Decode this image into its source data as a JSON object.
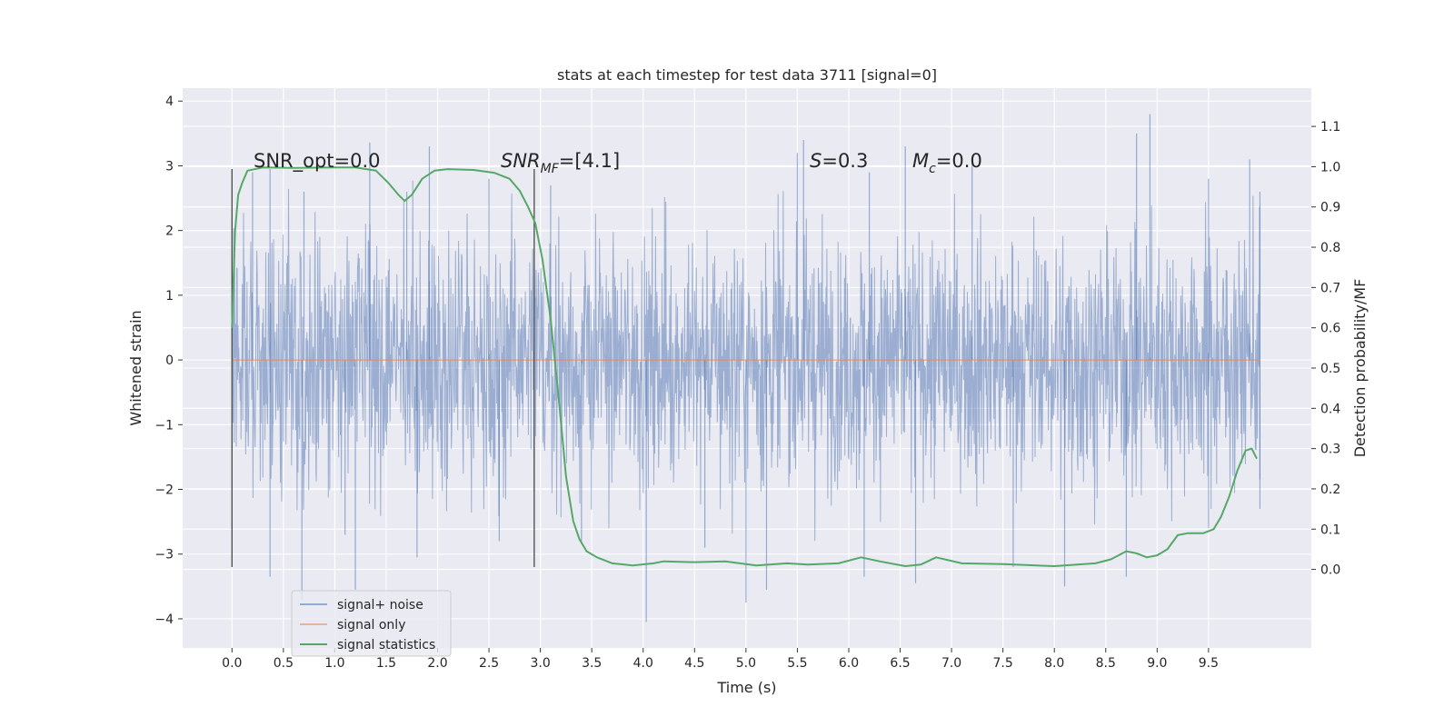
{
  "chart_data": {
    "type": "line",
    "title": "stats at each timestep for test data 3711 [signal=0]",
    "xlabel": "Time (s)",
    "ylabel": "Whitened strain",
    "ylabel_right": "Detection probability/MF",
    "xlim": [
      -0.48,
      10.5
    ],
    "ylim": [
      -4.45,
      4.2
    ],
    "ylim_right": [
      -0.195,
      1.195
    ],
    "x_ticks": [
      0.0,
      0.5,
      1.0,
      1.5,
      2.0,
      2.5,
      3.0,
      3.5,
      4.0,
      4.5,
      5.0,
      5.5,
      6.0,
      6.5,
      7.0,
      7.5,
      8.0,
      8.5,
      9.0,
      9.5
    ],
    "x_tick_labels": [
      "0.0",
      "0.5",
      "1.0",
      "1.5",
      "2.0",
      "2.5",
      "3.0",
      "3.5",
      "4.0",
      "4.5",
      "5.0",
      "5.5",
      "6.0",
      "6.5",
      "7.0",
      "7.5",
      "8.0",
      "8.5",
      "9.0",
      "9.5"
    ],
    "y_ticks": [
      -4,
      -3,
      -2,
      -1,
      0,
      1,
      2,
      3,
      4
    ],
    "y_tick_labels": [
      "−4",
      "−3",
      "−2",
      "−1",
      "0",
      "1",
      "2",
      "3",
      "4"
    ],
    "y_ticks_right": [
      0.0,
      0.1,
      0.2,
      0.3,
      0.4,
      0.5,
      0.6,
      0.7,
      0.8,
      0.9,
      1.0,
      1.1
    ],
    "y_tick_labels_right": [
      "0.0",
      "0.1",
      "0.2",
      "0.3",
      "0.4",
      "0.5",
      "0.6",
      "0.7",
      "0.8",
      "0.9",
      "1.0",
      "1.1"
    ],
    "grid": true,
    "legend_position": "lower-left",
    "annotations": {
      "snr_opt": "SNR_opt=0.0",
      "snr_mf_main": "SNR",
      "snr_mf_sub": "MF",
      "snr_mf_value": "=[4.1]",
      "s_main": "S",
      "s_value": "=0.3",
      "mc_main": "M",
      "mc_sub": "c",
      "mc_value": "=0.0"
    },
    "vlines": [
      0.0,
      2.94
    ],
    "vline_range": [
      -3.2,
      2.95
    ],
    "series": [
      {
        "name": "signal+ noise",
        "color": "#4c72b0",
        "axis": "left",
        "x_range": [
          0.0,
          10.0
        ],
        "envelope_sigma": 1.0,
        "peak_max": [
          [
            0.0,
            2.2
          ],
          [
            0.2,
            2.9
          ],
          [
            0.37,
            2.95
          ],
          [
            0.7,
            2.6
          ],
          [
            1.34,
            3.36
          ],
          [
            1.7,
            2.6
          ],
          [
            1.92,
            3.3
          ],
          [
            2.5,
            2.8
          ],
          [
            3.1,
            2.7
          ],
          [
            5.5,
            3.2
          ],
          [
            5.56,
            3.4
          ],
          [
            6.2,
            2.9
          ],
          [
            6.55,
            3.3
          ],
          [
            7.2,
            3.1
          ],
          [
            8.8,
            3.5
          ],
          [
            8.93,
            3.8
          ],
          [
            9.5,
            2.8
          ],
          [
            9.9,
            3.1
          ],
          [
            10.0,
            2.6
          ]
        ],
        "peak_min": [
          [
            0.0,
            -2.6
          ],
          [
            0.37,
            -3.35
          ],
          [
            0.68,
            -3.7
          ],
          [
            1.1,
            -2.7
          ],
          [
            1.2,
            -3.55
          ],
          [
            1.8,
            -3.05
          ],
          [
            2.6,
            -2.8
          ],
          [
            3.4,
            -2.8
          ],
          [
            4.03,
            -4.05
          ],
          [
            4.6,
            -2.9
          ],
          [
            5.0,
            -3.75
          ],
          [
            5.2,
            -3.55
          ],
          [
            6.15,
            -3.35
          ],
          [
            6.65,
            -3.45
          ],
          [
            7.6,
            -3.2
          ],
          [
            8.1,
            -3.5
          ],
          [
            8.7,
            -3.35
          ],
          [
            9.5,
            -2.6
          ],
          [
            10.0,
            -2.3
          ]
        ]
      },
      {
        "name": "signal only",
        "color": "#dd8452",
        "axis": "left",
        "x": [
          0.0,
          10.0
        ],
        "y": [
          0.0,
          0.0
        ]
      },
      {
        "name": "signal statistics",
        "color": "#55a868",
        "axis": "right",
        "x": [
          0.0,
          0.03,
          0.06,
          0.1,
          0.15,
          0.3,
          0.6,
          1.0,
          1.2,
          1.4,
          1.52,
          1.62,
          1.68,
          1.75,
          1.85,
          1.97,
          2.1,
          2.35,
          2.55,
          2.7,
          2.8,
          2.88,
          2.95,
          3.02,
          3.1,
          3.18,
          3.25,
          3.32,
          3.38,
          3.45,
          3.55,
          3.7,
          3.9,
          4.1,
          4.2,
          4.5,
          4.8,
          5.1,
          5.4,
          5.6,
          5.9,
          6.12,
          6.3,
          6.55,
          6.7,
          6.85,
          7.1,
          7.5,
          8.0,
          8.4,
          8.55,
          8.7,
          8.8,
          8.9,
          9.0,
          9.1,
          9.2,
          9.3,
          9.45,
          9.55,
          9.62,
          9.7,
          9.78,
          9.86,
          9.92,
          9.97
        ],
        "y": [
          0.6,
          0.84,
          0.93,
          0.96,
          0.99,
          0.998,
          0.997,
          0.998,
          0.998,
          0.99,
          0.96,
          0.93,
          0.915,
          0.93,
          0.97,
          0.99,
          0.994,
          0.992,
          0.985,
          0.97,
          0.94,
          0.9,
          0.86,
          0.77,
          0.62,
          0.42,
          0.23,
          0.12,
          0.075,
          0.045,
          0.03,
          0.015,
          0.01,
          0.015,
          0.02,
          0.018,
          0.02,
          0.01,
          0.015,
          0.012,
          0.015,
          0.03,
          0.02,
          0.008,
          0.012,
          0.03,
          0.015,
          0.013,
          0.008,
          0.015,
          0.025,
          0.045,
          0.04,
          0.03,
          0.035,
          0.05,
          0.085,
          0.09,
          0.09,
          0.1,
          0.13,
          0.18,
          0.245,
          0.295,
          0.3,
          0.275
        ]
      }
    ]
  }
}
